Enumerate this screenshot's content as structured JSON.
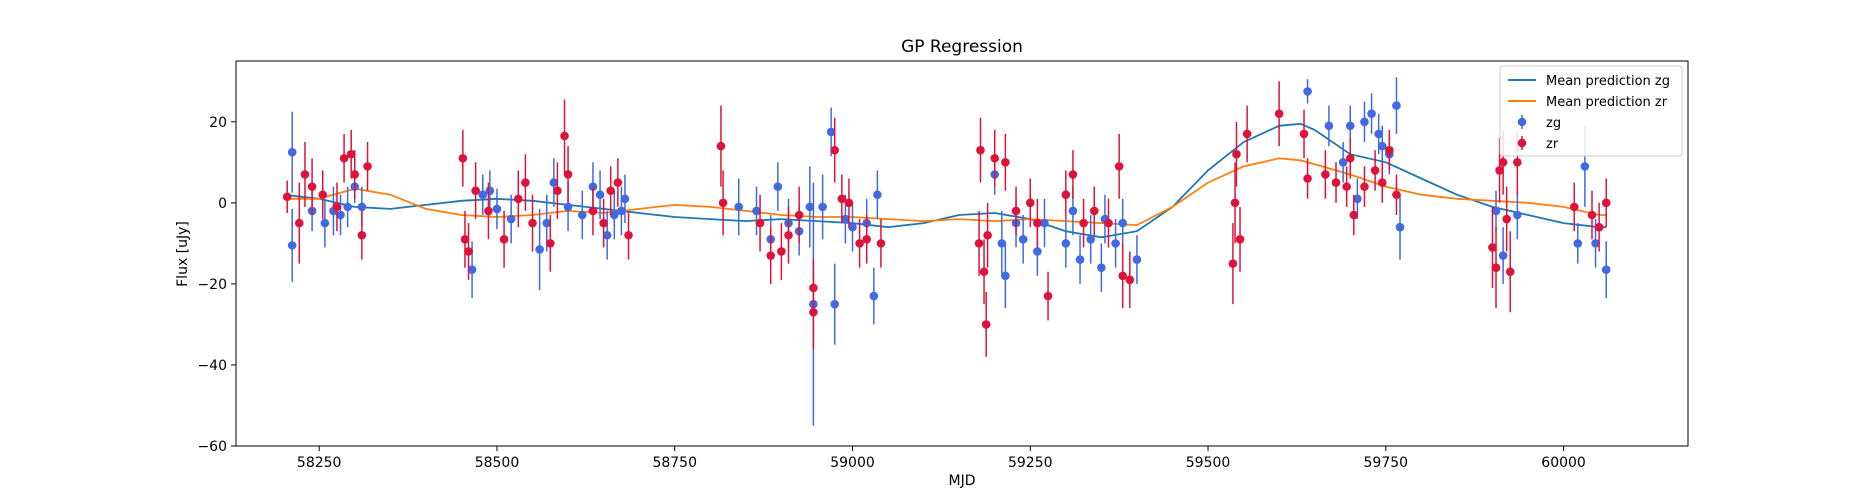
{
  "chart_data": {
    "type": "scatter",
    "title": "GP Regression",
    "xlabel": "MJD",
    "ylabel": "Flux [uJy]",
    "xlim": [
      58133,
      60175
    ],
    "ylim": [
      -60,
      35
    ],
    "x_ticks": [
      58250,
      58500,
      58750,
      59000,
      59250,
      59500,
      59750,
      60000
    ],
    "y_ticks": [
      -60,
      -40,
      -20,
      0,
      20
    ],
    "grid": false,
    "legend_position": "top-right",
    "legend": [
      {
        "label": "Mean prediction zg",
        "kind": "line",
        "color": "#1f77b4"
      },
      {
        "label": "Mean prediction zr",
        "kind": "line",
        "color": "#ff7f0e"
      },
      {
        "label": "zg",
        "kind": "errorbar",
        "color": "#4169e1"
      },
      {
        "label": "zr",
        "kind": "errorbar",
        "color": "#dc143c"
      }
    ],
    "series": [
      {
        "name": "Mean prediction zg",
        "type": "line",
        "color": "#1f77b4",
        "x": [
          58200,
          58250,
          58300,
          58350,
          58400,
          58450,
          58500,
          58550,
          58600,
          58650,
          58700,
          58750,
          58800,
          58850,
          58900,
          58950,
          59000,
          59050,
          59100,
          59150,
          59200,
          59250,
          59300,
          59350,
          59400,
          59450,
          59500,
          59550,
          59600,
          59630,
          59650,
          59700,
          59750,
          59800,
          59850,
          59900,
          59950,
          60000,
          60050,
          60060
        ],
        "y": [
          2,
          1,
          -1,
          -1.5,
          -0.5,
          0.5,
          1,
          0.5,
          -0.5,
          -1.5,
          -2.5,
          -3.5,
          -4,
          -4.5,
          -4,
          -4.5,
          -5,
          -6,
          -5,
          -3,
          -2.5,
          -4,
          -7,
          -8.5,
          -7,
          -1,
          8,
          15,
          19,
          19.5,
          18,
          12,
          10,
          6,
          2,
          -1,
          -3,
          -5,
          -6,
          -6
        ]
      },
      {
        "name": "Mean prediction zr",
        "type": "line",
        "color": "#ff7f0e",
        "x": [
          58200,
          58250,
          58300,
          58350,
          58400,
          58450,
          58500,
          58550,
          58600,
          58650,
          58700,
          58750,
          58800,
          58850,
          58900,
          58950,
          59000,
          59050,
          59100,
          59150,
          59200,
          59250,
          59300,
          59350,
          59400,
          59450,
          59500,
          59550,
          59600,
          59630,
          59650,
          59700,
          59750,
          59800,
          59850,
          59900,
          59950,
          60000,
          60050,
          60060
        ],
        "y": [
          1,
          1,
          3.5,
          2,
          -1.5,
          -3,
          -3.5,
          -3,
          -2,
          -2.5,
          -1.5,
          -0.5,
          -1,
          -2,
          -3,
          -3.5,
          -3.5,
          -4,
          -4.5,
          -4,
          -4.5,
          -4,
          -4.5,
          -5,
          -5.5,
          -1,
          5,
          9,
          11,
          10.5,
          9.5,
          7,
          4,
          2,
          1,
          0.5,
          0,
          -1,
          -3,
          -3
        ]
      },
      {
        "name": "zg",
        "type": "errorbar",
        "color": "#4169e1",
        "points": [
          [
            58212,
            12.5,
            10
          ],
          [
            58212,
            -10.5,
            9
          ],
          [
            58240,
            -2,
            5
          ],
          [
            58258,
            -5,
            6
          ],
          [
            58270,
            -2,
            6
          ],
          [
            58280,
            -3,
            5
          ],
          [
            58290,
            -1,
            5
          ],
          [
            58300,
            4,
            4
          ],
          [
            58310,
            -1,
            5
          ],
          [
            58465,
            -16.5,
            7
          ],
          [
            58480,
            2,
            5
          ],
          [
            58490,
            3,
            5
          ],
          [
            58500,
            -1.5,
            5
          ],
          [
            58520,
            -4,
            6
          ],
          [
            58560,
            -11.5,
            10
          ],
          [
            58570,
            -5,
            7
          ],
          [
            58580,
            5,
            6
          ],
          [
            58600,
            -1,
            6
          ],
          [
            58620,
            -3,
            6
          ],
          [
            58635,
            4,
            6
          ],
          [
            58645,
            2,
            6
          ],
          [
            58655,
            -8,
            6
          ],
          [
            58665,
            -3,
            6
          ],
          [
            58675,
            -2,
            6
          ],
          [
            58680,
            1,
            6
          ],
          [
            58840,
            -1,
            7
          ],
          [
            58865,
            -2,
            6
          ],
          [
            58885,
            -9,
            6
          ],
          [
            58895,
            4,
            6
          ],
          [
            58910,
            -5,
            6
          ],
          [
            58925,
            -7,
            6
          ],
          [
            58940,
            -1,
            10
          ],
          [
            58945,
            -25,
            30
          ],
          [
            58958,
            -1,
            8
          ],
          [
            58970,
            17.5,
            6
          ],
          [
            58975,
            -25,
            10
          ],
          [
            58990,
            -4,
            6
          ],
          [
            59000,
            -6,
            6
          ],
          [
            59020,
            -5,
            6
          ],
          [
            59030,
            -23,
            7
          ],
          [
            59035,
            2,
            6
          ],
          [
            59200,
            7,
            5
          ],
          [
            59210,
            -10,
            8
          ],
          [
            59215,
            -18,
            8
          ],
          [
            59230,
            -5,
            6
          ],
          [
            59240,
            -9,
            6
          ],
          [
            59260,
            -12,
            6
          ],
          [
            59270,
            -5,
            6
          ],
          [
            59300,
            -10,
            6
          ],
          [
            59310,
            -2,
            6
          ],
          [
            59320,
            -14,
            6
          ],
          [
            59335,
            -9,
            6
          ],
          [
            59350,
            -16,
            6
          ],
          [
            59355,
            -4,
            6
          ],
          [
            59370,
            -10,
            6
          ],
          [
            59380,
            -5,
            6
          ],
          [
            59400,
            -14,
            6
          ],
          [
            59640,
            27.5,
            3
          ],
          [
            59670,
            19,
            5
          ],
          [
            59690,
            10,
            5
          ],
          [
            59700,
            19,
            5
          ],
          [
            59710,
            1,
            5
          ],
          [
            59720,
            20,
            5
          ],
          [
            59730,
            22,
            5
          ],
          [
            59740,
            17,
            5
          ],
          [
            59745,
            14,
            5
          ],
          [
            59755,
            12,
            5
          ],
          [
            59765,
            24,
            7
          ],
          [
            59770,
            -6,
            8
          ],
          [
            59905,
            -2,
            5
          ],
          [
            59915,
            -13,
            7
          ],
          [
            59935,
            -3,
            6
          ],
          [
            60020,
            -10,
            5
          ],
          [
            60030,
            9,
            10
          ],
          [
            60045,
            -10,
            6
          ],
          [
            60060,
            -16.5,
            7
          ]
        ]
      },
      {
        "name": "zr",
        "type": "errorbar",
        "color": "#dc143c",
        "points": [
          [
            58205,
            1.5,
            4
          ],
          [
            58222,
            -5,
            10
          ],
          [
            58230,
            7,
            8
          ],
          [
            58240,
            4,
            7
          ],
          [
            58255,
            2,
            6
          ],
          [
            58275,
            -1,
            6
          ],
          [
            58285,
            11,
            6
          ],
          [
            58295,
            12,
            6
          ],
          [
            58300,
            7,
            6
          ],
          [
            58310,
            -8,
            6
          ],
          [
            58318,
            9,
            6
          ],
          [
            58452,
            11,
            7
          ],
          [
            58455,
            -9,
            7
          ],
          [
            58460,
            -12,
            7
          ],
          [
            58470,
            3,
            7
          ],
          [
            58488,
            -2,
            7
          ],
          [
            58510,
            -9,
            7
          ],
          [
            58530,
            1,
            7
          ],
          [
            58540,
            5,
            7
          ],
          [
            58550,
            -5,
            7
          ],
          [
            58575,
            -10,
            7
          ],
          [
            58585,
            3,
            7
          ],
          [
            58595,
            16.5,
            9
          ],
          [
            58600,
            7,
            7
          ],
          [
            58635,
            -2,
            6
          ],
          [
            58650,
            -5,
            6
          ],
          [
            58660,
            3,
            6
          ],
          [
            58670,
            5,
            6
          ],
          [
            58685,
            -8,
            6
          ],
          [
            58815,
            14,
            10
          ],
          [
            58818,
            0,
            8
          ],
          [
            58870,
            -5,
            7
          ],
          [
            58885,
            -13,
            7
          ],
          [
            58900,
            -12,
            7
          ],
          [
            58910,
            -8,
            7
          ],
          [
            58925,
            -3,
            7
          ],
          [
            58945,
            -21,
            7
          ],
          [
            58945,
            -27,
            9
          ],
          [
            58975,
            13,
            8
          ],
          [
            58985,
            1,
            6
          ],
          [
            58995,
            0,
            6
          ],
          [
            59010,
            -10,
            6
          ],
          [
            59020,
            -9,
            6
          ],
          [
            59040,
            -10,
            6
          ],
          [
            59178,
            -10,
            8
          ],
          [
            59180,
            13,
            8
          ],
          [
            59185,
            -17,
            8
          ],
          [
            59188,
            -30,
            8
          ],
          [
            59190,
            -8,
            8
          ],
          [
            59200,
            11,
            7
          ],
          [
            59215,
            10,
            7
          ],
          [
            59230,
            -2,
            6
          ],
          [
            59250,
            0,
            6
          ],
          [
            59260,
            -5,
            6
          ],
          [
            59275,
            -23,
            6
          ],
          [
            59300,
            2,
            6
          ],
          [
            59310,
            7,
            6
          ],
          [
            59325,
            -5,
            6
          ],
          [
            59340,
            -2,
            6
          ],
          [
            59360,
            -5,
            6
          ],
          [
            59375,
            9,
            8
          ],
          [
            59380,
            -18,
            8
          ],
          [
            59390,
            -19,
            7
          ],
          [
            59535,
            -15,
            10
          ],
          [
            59538,
            0,
            10
          ],
          [
            59540,
            12,
            8
          ],
          [
            59545,
            -9,
            8
          ],
          [
            59555,
            17,
            7
          ],
          [
            59600,
            22,
            8
          ],
          [
            59635,
            17,
            6
          ],
          [
            59640,
            6,
            5
          ],
          [
            59665,
            7,
            6
          ],
          [
            59680,
            5,
            5
          ],
          [
            59695,
            4,
            5
          ],
          [
            59700,
            11,
            5
          ],
          [
            59705,
            -3,
            5
          ],
          [
            59720,
            4,
            5
          ],
          [
            59735,
            8,
            5
          ],
          [
            59745,
            5,
            5
          ],
          [
            59755,
            13,
            5
          ],
          [
            59765,
            2,
            5
          ],
          [
            59900,
            -11,
            10
          ],
          [
            59905,
            -16,
            10
          ],
          [
            59910,
            8,
            8
          ],
          [
            59915,
            10,
            8
          ],
          [
            59920,
            -4,
            8
          ],
          [
            59925,
            -17,
            10
          ],
          [
            59935,
            10,
            8
          ],
          [
            60015,
            -1,
            6
          ],
          [
            60040,
            -3,
            6
          ],
          [
            60050,
            -6,
            6
          ],
          [
            60060,
            0,
            6
          ]
        ]
      }
    ]
  }
}
